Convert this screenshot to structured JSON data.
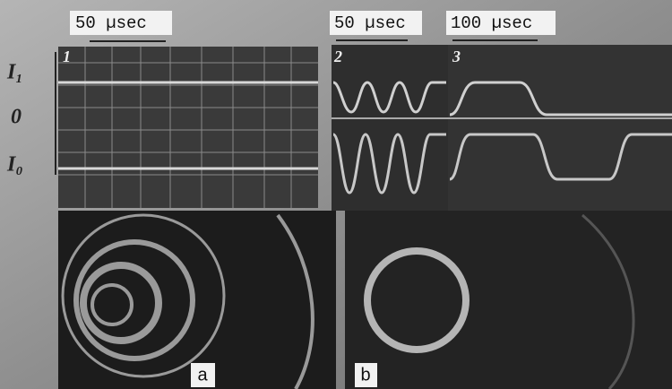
{
  "scale_labels": [
    "50 µsec",
    "50 µsec",
    "100 µsec"
  ],
  "trace_numbers": [
    "1",
    "2",
    "3"
  ],
  "axis_labels": [
    "I₁",
    "0",
    "I₀"
  ],
  "panel_labels": [
    "a",
    "b"
  ]
}
